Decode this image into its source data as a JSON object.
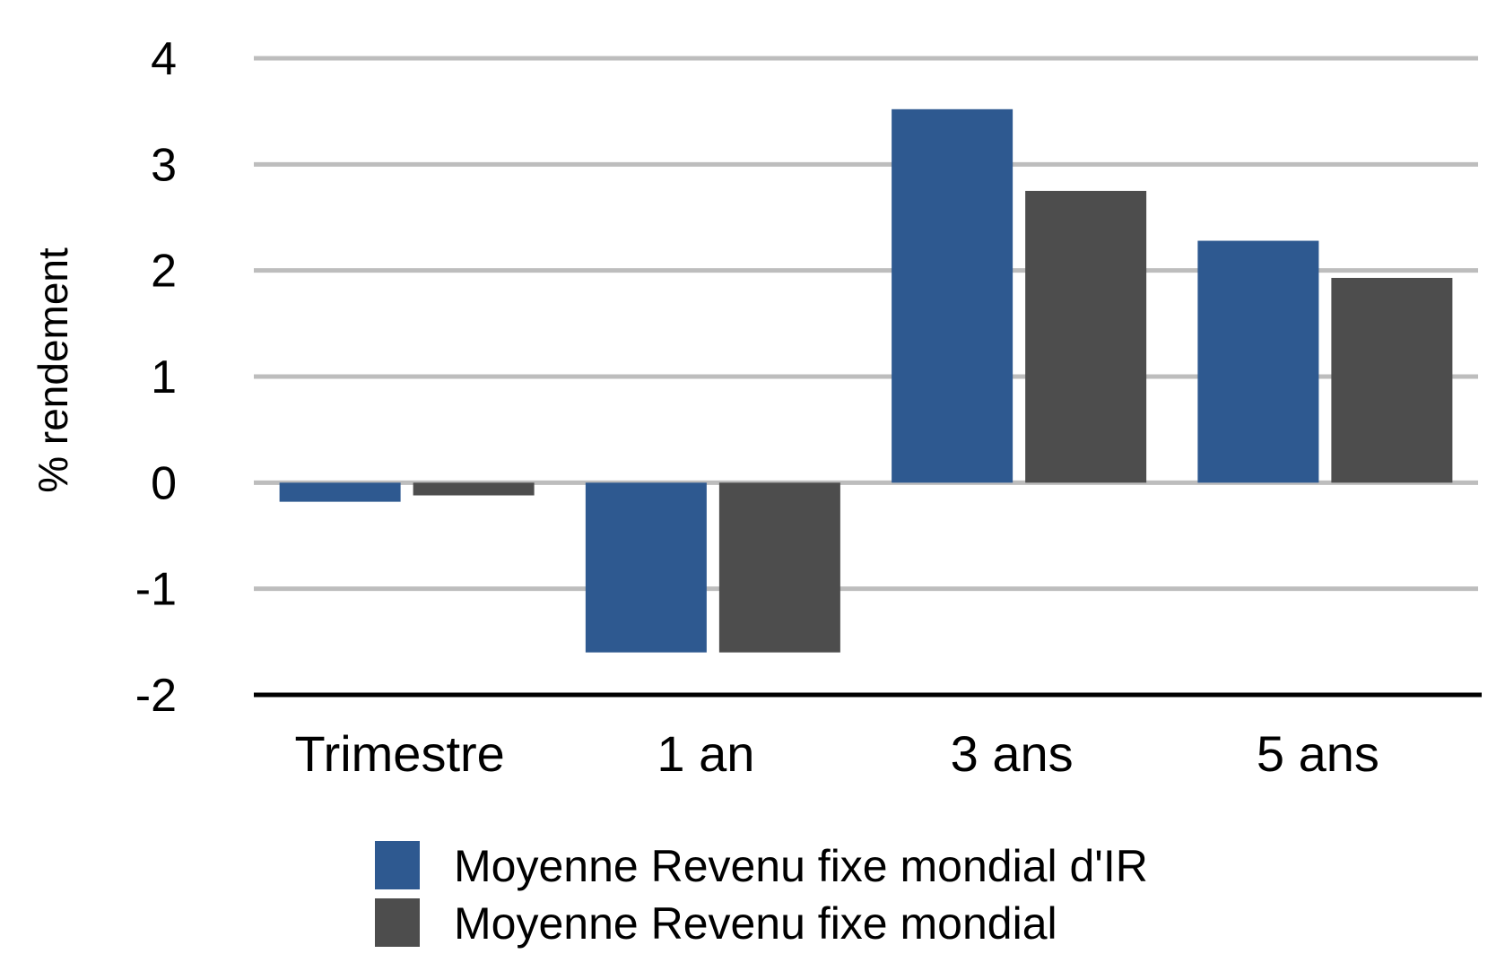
{
  "chart_data": {
    "type": "bar",
    "title": "",
    "ylabel": "% rendement",
    "xlabel": "",
    "ylim": [
      -2,
      4
    ],
    "yticks": [
      4,
      3,
      2,
      1,
      0,
      -1,
      -2
    ],
    "categories": [
      "Trimestre",
      "1 an",
      "3 ans",
      "5 ans"
    ],
    "series": [
      {
        "name": "Moyenne Revenu fixe mondial d'IR",
        "color": "#2e5990",
        "values": [
          -0.18,
          -1.6,
          3.52,
          2.28
        ]
      },
      {
        "name": "Moyenne Revenu fixe mondial",
        "color": "#4d4d4d",
        "values": [
          -0.12,
          -1.6,
          2.75,
          1.93
        ]
      }
    ],
    "grid": true,
    "legend_position": "bottom"
  }
}
